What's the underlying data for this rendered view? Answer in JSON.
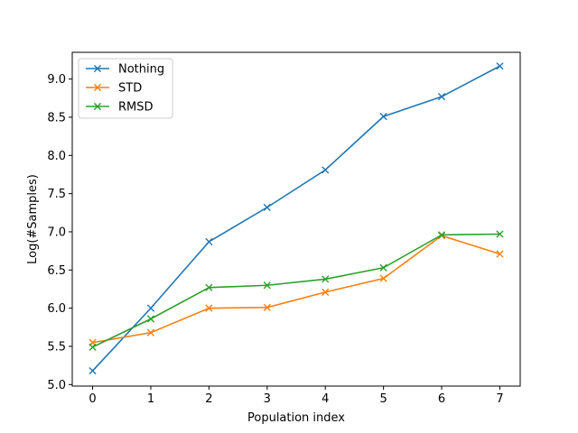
{
  "chart_data": {
    "type": "line",
    "title": "",
    "xlabel": "Population index",
    "ylabel": "Log(#Samples)",
    "x": [
      0,
      1,
      2,
      3,
      4,
      5,
      6,
      7
    ],
    "xlim": [
      -0.35,
      7.35
    ],
    "ylim": [
      4.98,
      9.35
    ],
    "xticks": [
      0,
      1,
      2,
      3,
      4,
      5,
      6,
      7
    ],
    "yticks": [
      5.0,
      5.5,
      6.0,
      6.5,
      7.0,
      7.5,
      8.0,
      8.5,
      9.0
    ],
    "grid": false,
    "legend_position": "top-left",
    "marker": "x",
    "series": [
      {
        "name": "Nothing",
        "color": "#1f77b4",
        "values": [
          5.18,
          6.0,
          6.87,
          7.32,
          7.81,
          8.51,
          8.77,
          9.17
        ]
      },
      {
        "name": "STD",
        "color": "#ff7f0e",
        "values": [
          5.55,
          5.68,
          6.0,
          6.01,
          6.21,
          6.39,
          6.95,
          6.71
        ]
      },
      {
        "name": "RMSD",
        "color": "#2ca02c",
        "values": [
          5.49,
          5.86,
          6.27,
          6.3,
          6.38,
          6.53,
          6.96,
          6.97
        ]
      }
    ]
  }
}
